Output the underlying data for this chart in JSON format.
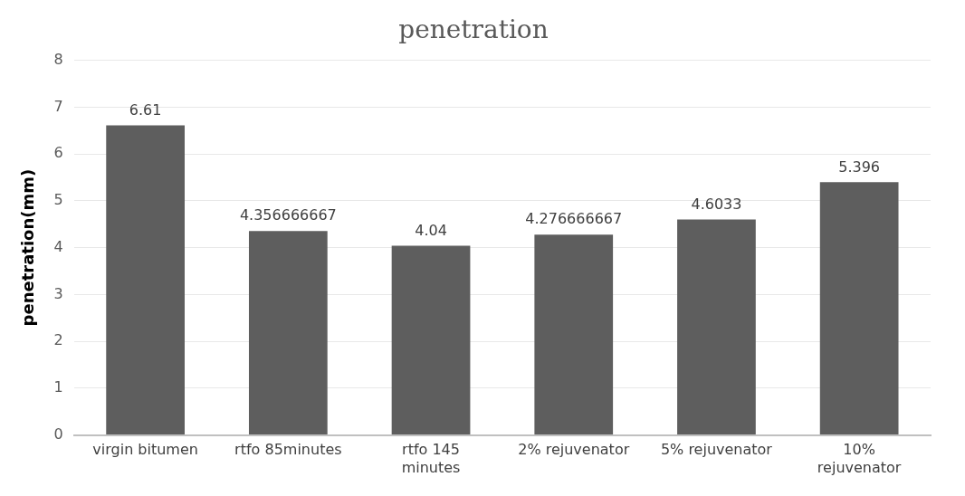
{
  "chart_data": {
    "type": "bar",
    "title": "penetration",
    "ylabel": "penetration(mm)",
    "categories": [
      "virgin bitumen",
      "rtfo 85minutes",
      "rtfo 145 minutes",
      "2% rejuvenator",
      "5% rejuvenator",
      "10% rejuvenator"
    ],
    "values": [
      6.61,
      4.356666667,
      4.04,
      4.276666667,
      4.6033,
      5.396
    ],
    "value_labels": [
      "6.61",
      "4.356666667",
      "4.04",
      "4.276666667",
      "4.6033",
      "5.396"
    ],
    "color": "#5e5e5e",
    "ylim": [
      0,
      8
    ],
    "yticks": [
      0,
      1,
      2,
      3,
      4,
      5,
      6,
      7,
      8
    ],
    "grid": "y",
    "legend": false
  }
}
